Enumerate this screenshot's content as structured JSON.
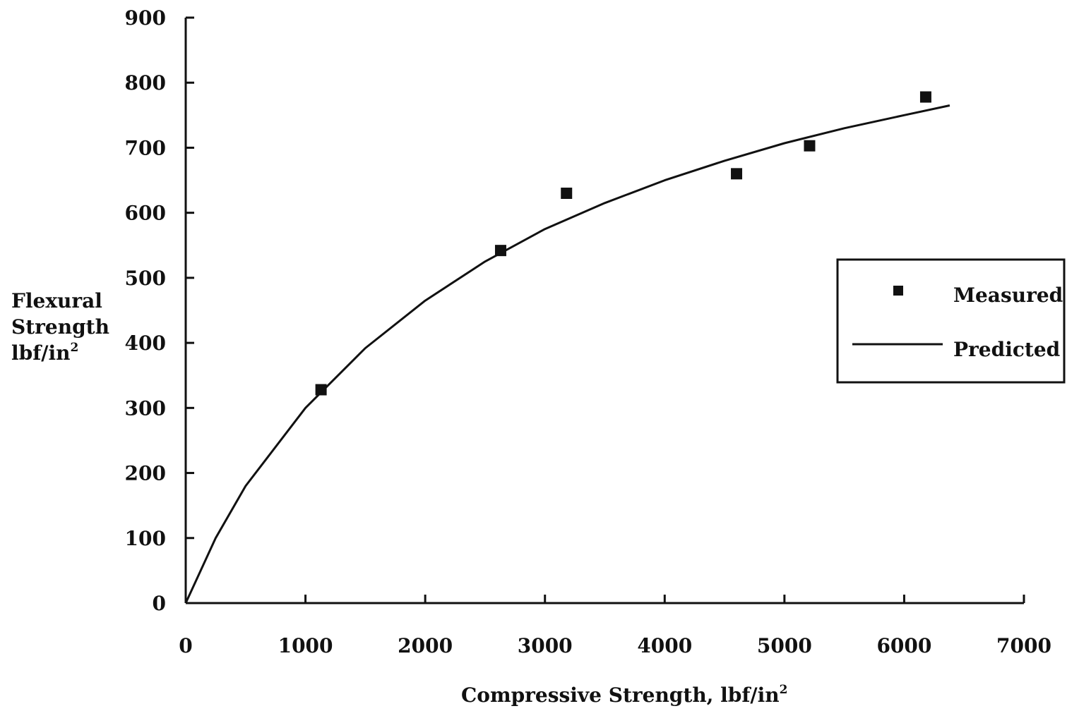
{
  "chart_data": {
    "type": "scatter",
    "title": "",
    "xlabel": "Compressive Strength, lbf/in",
    "xlabel_sup": "2",
    "ylabel_lines": [
      "Flexural",
      "Strength",
      "lbf/in"
    ],
    "ylabel_sup": "2",
    "xlim": [
      0,
      7000
    ],
    "ylim": [
      0,
      900
    ],
    "x_ticks": [
      "0",
      "1000",
      "2000",
      "3000",
      "4000",
      "5000",
      "6000",
      "7000"
    ],
    "y_ticks": [
      "0",
      "100",
      "200",
      "300",
      "400",
      "500",
      "600",
      "700",
      "800",
      "900"
    ],
    "grid": false,
    "legend_position": "right",
    "series": [
      {
        "name": "Measured",
        "kind": "points",
        "points": [
          {
            "x": 1130,
            "y": 328
          },
          {
            "x": 2630,
            "y": 542
          },
          {
            "x": 3180,
            "y": 630
          },
          {
            "x": 4600,
            "y": 660
          },
          {
            "x": 5210,
            "y": 703
          },
          {
            "x": 6180,
            "y": 778
          }
        ]
      },
      {
        "name": "Predicted",
        "kind": "line",
        "points": [
          {
            "x": 0,
            "y": 0
          },
          {
            "x": 250,
            "y": 100
          },
          {
            "x": 500,
            "y": 180
          },
          {
            "x": 1000,
            "y": 300
          },
          {
            "x": 1500,
            "y": 392
          },
          {
            "x": 2000,
            "y": 465
          },
          {
            "x": 2500,
            "y": 525
          },
          {
            "x": 3000,
            "y": 575
          },
          {
            "x": 3500,
            "y": 615
          },
          {
            "x": 4000,
            "y": 650
          },
          {
            "x": 4500,
            "y": 680
          },
          {
            "x": 5000,
            "y": 707
          },
          {
            "x": 5500,
            "y": 730
          },
          {
            "x": 6000,
            "y": 750
          },
          {
            "x": 6380,
            "y": 765
          }
        ]
      }
    ]
  }
}
